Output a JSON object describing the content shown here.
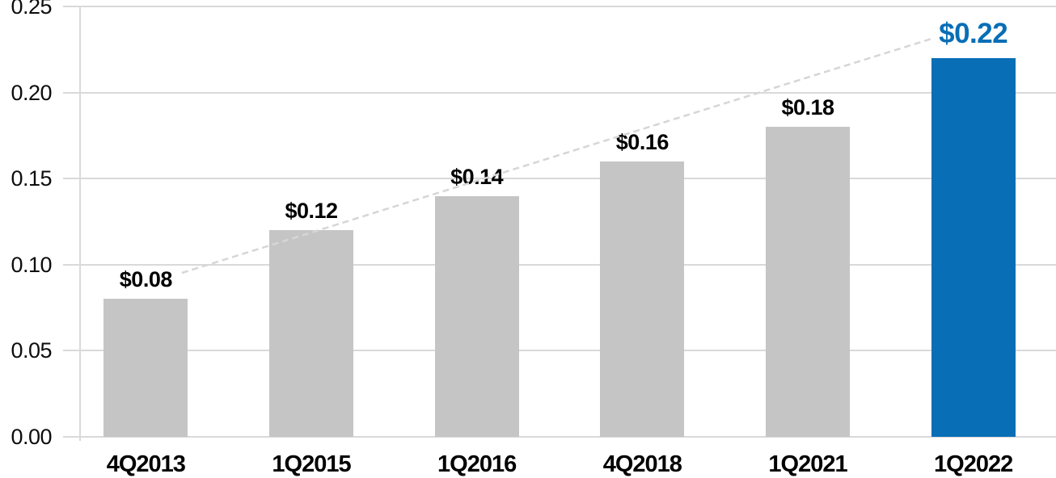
{
  "chart_data": {
    "type": "bar",
    "title": "",
    "xlabel": "",
    "ylabel": "",
    "categories": [
      "4Q2013",
      "1Q2015",
      "1Q2016",
      "4Q2018",
      "1Q2021",
      "1Q2022"
    ],
    "values": [
      0.08,
      0.12,
      0.14,
      0.16,
      0.18,
      0.22
    ],
    "value_labels": [
      "$0.08",
      "$0.12",
      "$0.14",
      "$0.16",
      "$0.18",
      "$0.22"
    ],
    "highlight_index": 5,
    "ylim": [
      0,
      0.25
    ],
    "ytick_values": [
      0,
      0.05,
      0.1,
      0.15,
      0.2,
      0.25
    ],
    "ytick_labels": [
      "0.00",
      "0.05",
      "0.10",
      "0.15",
      "0.20",
      "0.25"
    ],
    "grid": true,
    "legend": "none",
    "trendline": {
      "present": true,
      "style": "dashed",
      "from_label": "$0.08",
      "to_label": "$0.22"
    },
    "colors": {
      "bar": "#c5c5c5",
      "highlight_bar": "#086eb6",
      "value_label": "#000000",
      "highlight_value_label": "#086eb6",
      "gridline": "#d9d9d9",
      "trendline": "#d6d6d6",
      "axis_text": "#0d0d0d"
    }
  }
}
